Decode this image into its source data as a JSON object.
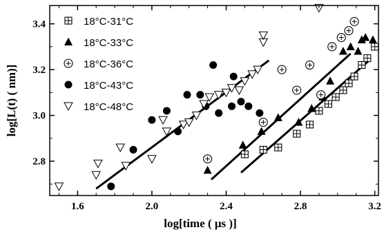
{
  "chart_data": {
    "type": "scatter",
    "xlabel": "log[time ( μs )]",
    "ylabel": "log[L(t) ( nm)]",
    "xlim": [
      1.45,
      3.22
    ],
    "ylim": [
      2.65,
      3.48
    ],
    "x_ticks": [
      1.6,
      2.0,
      2.4,
      2.8,
      3.2
    ],
    "y_ticks": [
      2.8,
      3.0,
      3.2,
      3.4
    ],
    "x_tick_labels": [
      "1.6",
      "2.0",
      "2.4",
      "2.8",
      "3.2"
    ],
    "y_tick_labels": [
      "2.8",
      "3.0",
      "3.2",
      "3.4"
    ],
    "legend_position": "top-left",
    "grid": false,
    "series": [
      {
        "name": "18°C-31°C",
        "marker": "boxed-plus",
        "points": [
          [
            2.5,
            2.83
          ],
          [
            2.6,
            2.85
          ],
          [
            2.68,
            2.86
          ],
          [
            2.78,
            2.92
          ],
          [
            2.85,
            2.96
          ],
          [
            2.9,
            3.02
          ],
          [
            2.95,
            3.05
          ],
          [
            2.99,
            3.08
          ],
          [
            3.03,
            3.11
          ],
          [
            3.06,
            3.14
          ],
          [
            3.09,
            3.17
          ],
          [
            3.13,
            3.22
          ],
          [
            3.16,
            3.25
          ],
          [
            3.2,
            3.3
          ]
        ]
      },
      {
        "name": "18°C-33°C",
        "marker": "filled-triangle",
        "points": [
          [
            2.3,
            2.76
          ],
          [
            2.49,
            2.87
          ],
          [
            2.59,
            2.93
          ],
          [
            2.68,
            2.99
          ],
          [
            2.79,
            2.97
          ],
          [
            2.86,
            3.03
          ],
          [
            2.92,
            3.08
          ],
          [
            2.96,
            3.15
          ],
          [
            3.03,
            3.28
          ],
          [
            3.07,
            3.3
          ],
          [
            3.11,
            3.28
          ],
          [
            3.13,
            3.33
          ],
          [
            3.15,
            3.34
          ],
          [
            3.19,
            3.33
          ]
        ]
      },
      {
        "name": "18°C-36°C",
        "marker": "circled-plus",
        "points": [
          [
            2.3,
            2.81
          ],
          [
            2.6,
            2.97
          ],
          [
            2.7,
            3.2
          ],
          [
            2.78,
            3.11
          ],
          [
            2.85,
            3.22
          ],
          [
            2.91,
            3.09
          ],
          [
            2.97,
            3.3
          ],
          [
            3.02,
            3.34
          ],
          [
            3.06,
            3.37
          ],
          [
            3.09,
            3.41
          ]
        ]
      },
      {
        "name": "18°C-43°C",
        "marker": "filled-circle",
        "points": [
          [
            1.78,
            2.69
          ],
          [
            1.9,
            2.85
          ],
          [
            2.0,
            2.98
          ],
          [
            2.08,
            3.02
          ],
          [
            2.14,
            2.93
          ],
          [
            2.19,
            3.09
          ],
          [
            2.26,
            3.09
          ],
          [
            2.29,
            3.04
          ],
          [
            2.33,
            3.22
          ],
          [
            2.36,
            3.01
          ],
          [
            2.43,
            3.04
          ],
          [
            2.44,
            3.17
          ],
          [
            2.48,
            3.06
          ],
          [
            2.52,
            3.04
          ],
          [
            2.58,
            3.01
          ]
        ]
      },
      {
        "name": "18°C-48°C",
        "marker": "open-down-triangle",
        "points": [
          [
            1.5,
            2.69
          ],
          [
            1.7,
            2.74
          ],
          [
            1.71,
            2.79
          ],
          [
            1.83,
            2.86
          ],
          [
            1.86,
            2.78
          ],
          [
            2.0,
            2.81
          ],
          [
            2.06,
            2.98
          ],
          [
            2.08,
            2.93
          ],
          [
            2.17,
            2.96
          ],
          [
            2.2,
            2.97
          ],
          [
            2.24,
            3.0
          ],
          [
            2.28,
            3.05
          ],
          [
            2.31,
            3.08
          ],
          [
            2.36,
            3.09
          ],
          [
            2.4,
            3.1
          ],
          [
            2.43,
            3.12
          ],
          [
            2.47,
            3.11
          ],
          [
            2.5,
            3.15
          ],
          [
            2.54,
            3.18
          ],
          [
            2.57,
            3.2
          ],
          [
            2.6,
            3.32
          ],
          [
            2.6,
            3.35
          ],
          [
            2.9,
            3.47
          ]
        ]
      }
    ],
    "fit_lines": [
      {
        "x": [
          1.7,
          2.63
        ],
        "y": [
          2.68,
          3.24
        ]
      },
      {
        "x": [
          2.32,
          3.07
        ],
        "y": [
          2.72,
          3.27
        ]
      },
      {
        "x": [
          2.48,
          3.17
        ],
        "y": [
          2.75,
          3.24
        ]
      }
    ]
  }
}
